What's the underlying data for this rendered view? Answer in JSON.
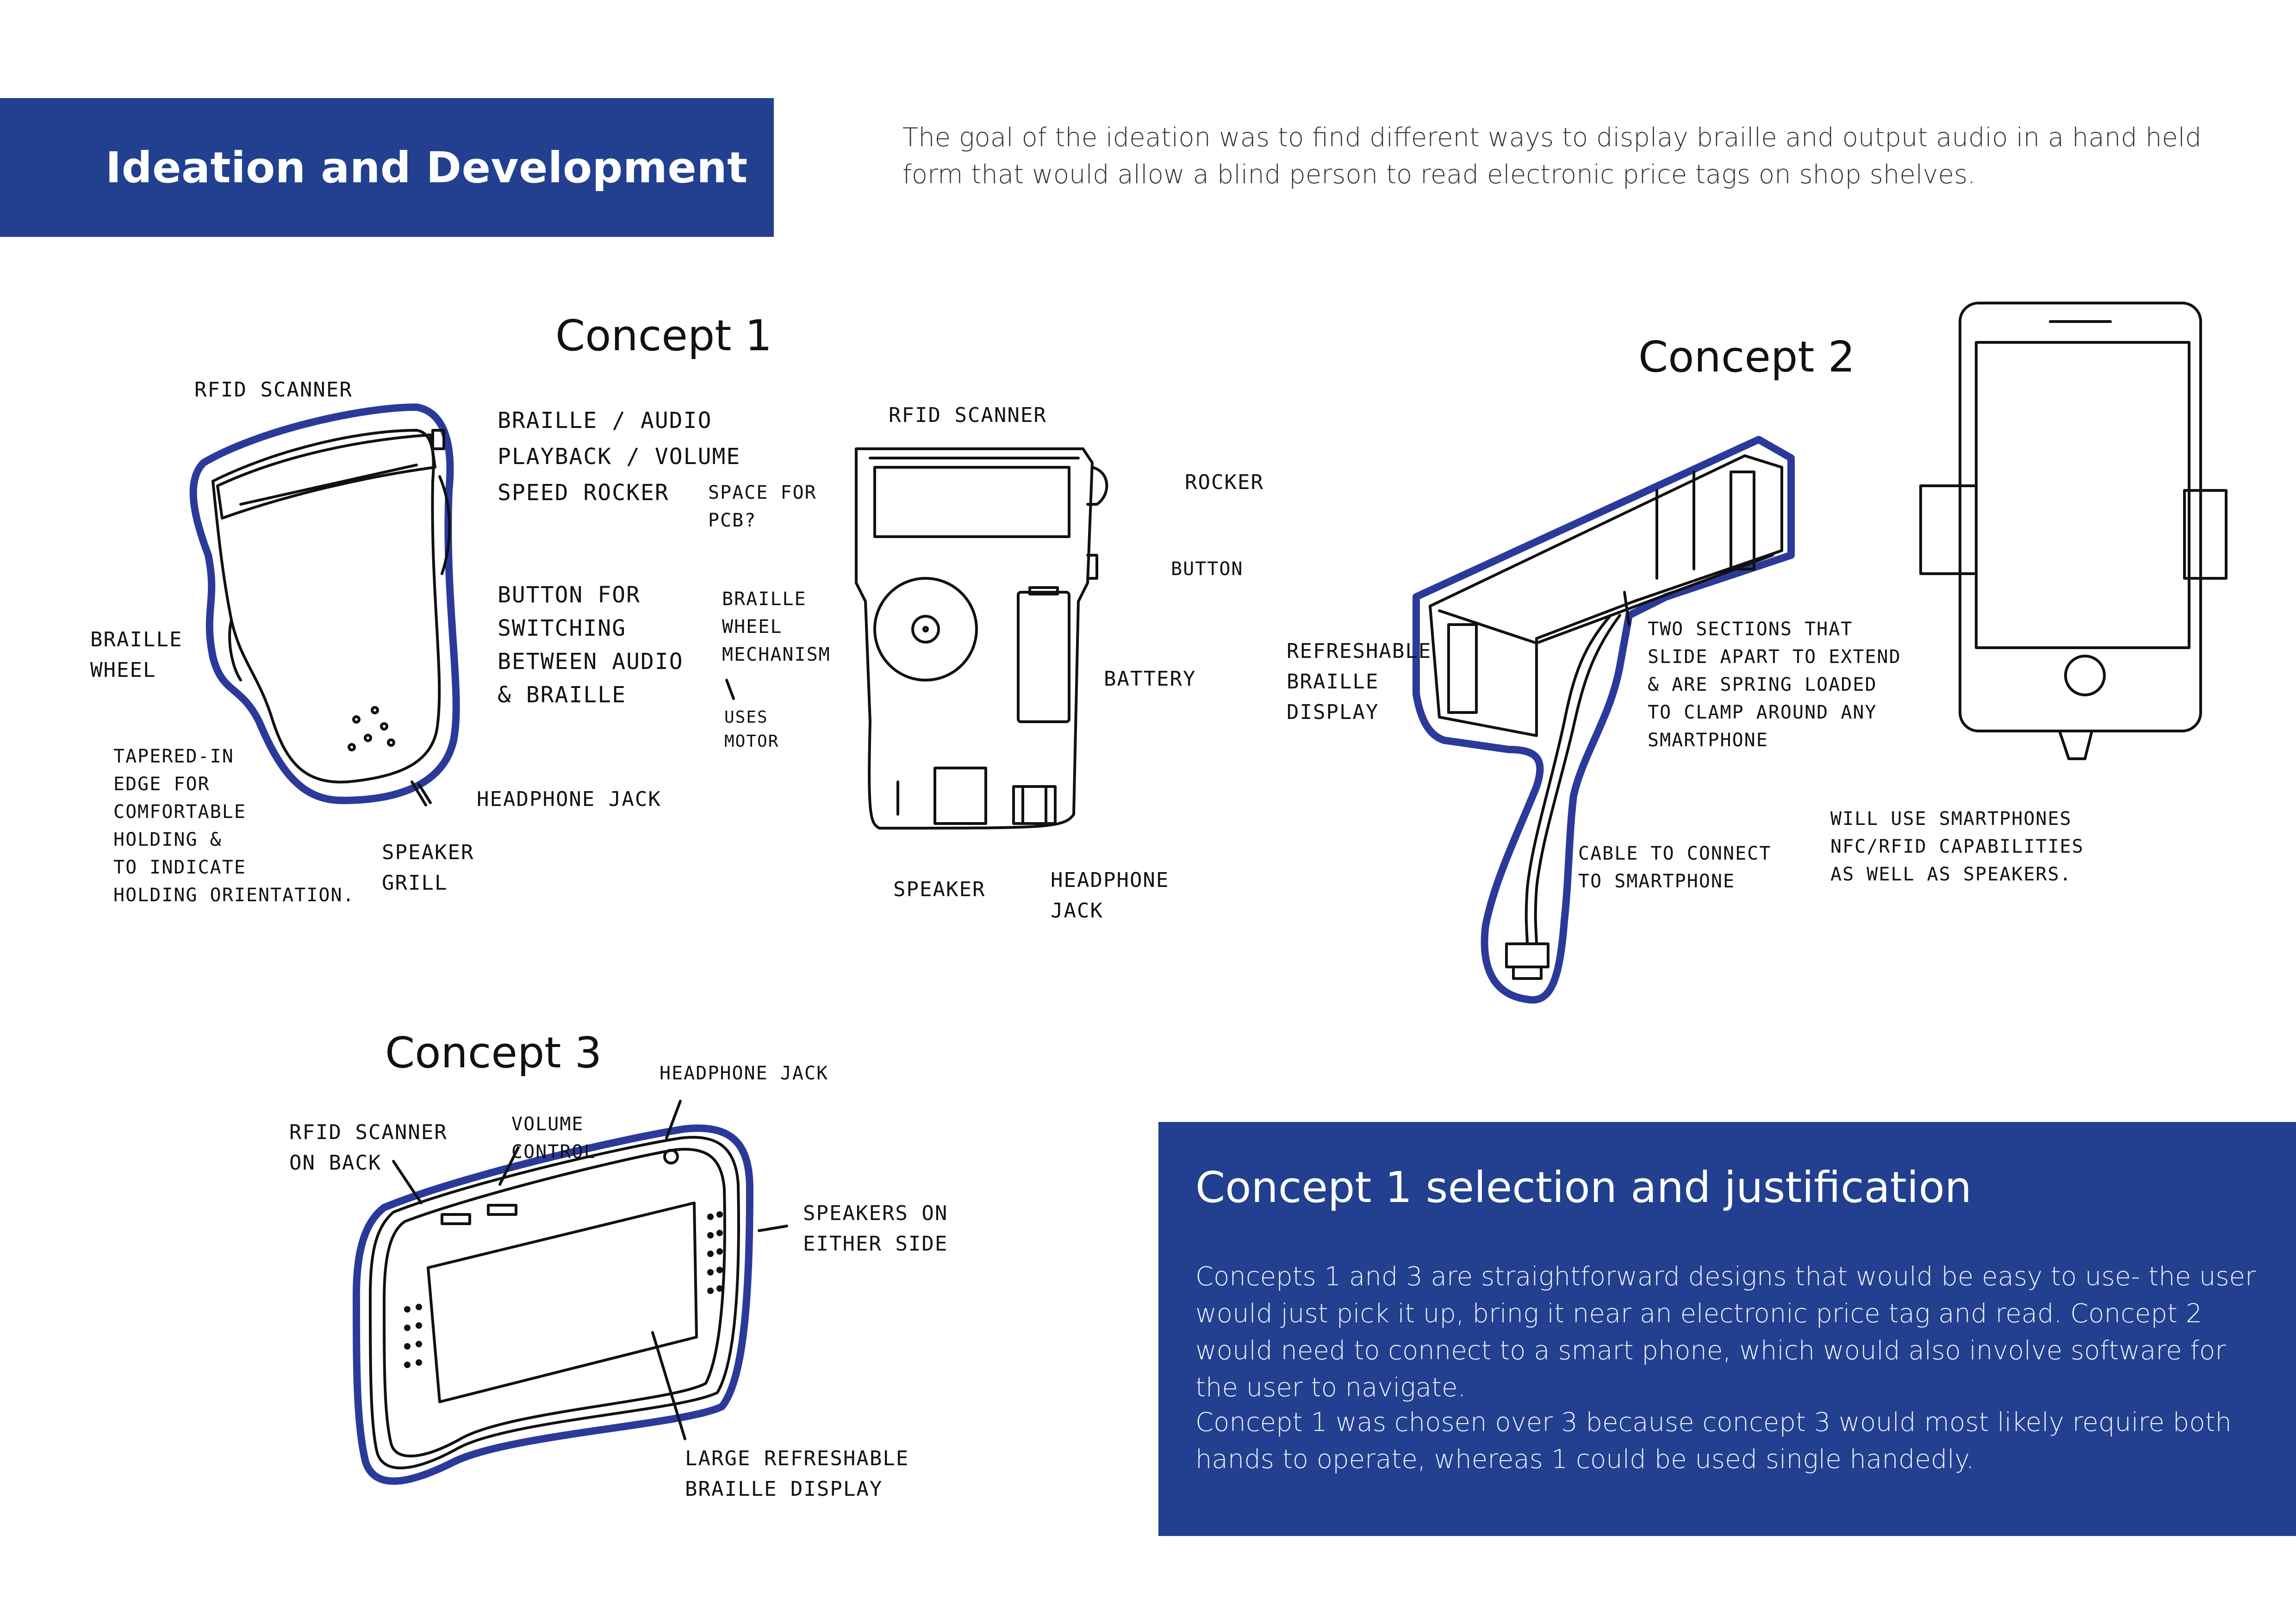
{
  "header": {
    "title": "Ideation and Development",
    "intro": "The goal of the ideation was to find different ways to display braille and output audio in a hand held form that would allow a blind person to read electronic price tags on shop shelves."
  },
  "concept1": {
    "title": "Concept 1",
    "left_sketch": {
      "rfid": "RFID SCANNER",
      "braille_wheel": "BRAILLE\nWHEEL",
      "tapered": "TAPERED-IN\nEDGE FOR\nCOMFORTABLE\nHOLDING &\nTO INDICATE\nHOLDING ORIENTATION.",
      "speaker_grill": "SPEAKER\nGRILL",
      "headphone": "HEADPHONE JACK",
      "rocker": "BRAILLE / AUDIO\nPLAYBACK / VOLUME\nSPEED ROCKER",
      "button": "BUTTON FOR\nSWITCHING\nBETWEEN AUDIO\n& BRAILLE"
    },
    "right_sketch": {
      "pcb": "SPACE FOR\nPCB?",
      "mechanism": "BRAILLE\nWHEEL\nMECHANISM",
      "motor": "USES\nMOTOR",
      "rfid": "RFID SCANNER",
      "rocker": "ROCKER",
      "button": "BUTTON",
      "battery": "BATTERY",
      "speaker": "SPEAKER",
      "headphone": "HEADPHONE\nJACK"
    }
  },
  "concept2": {
    "title": "Concept 2",
    "display": "REFRESHABLE\nBRAILLE\nDISPLAY",
    "sections": "TWO SECTIONS THAT\nSLIDE APART TO EXTEND\n& ARE SPRING LOADED\nTO CLAMP AROUND ANY\nSMARTPHONE",
    "cable": "CABLE TO CONNECT\nTO SMARTPHONE",
    "smartphone": "WILL USE SMARTPHONES\nNFC/RFID CAPABILITIES\nAS WELL AS SPEAKERS."
  },
  "concept3": {
    "title": "Concept 3",
    "rfid": "RFID SCANNER\nON BACK",
    "volume": "VOLUME\nCONTROL",
    "headphone": "HEADPHONE JACK",
    "speakers": "SPEAKERS ON\nEITHER SIDE",
    "display": "LARGE REFRESHABLE\nBRAILLE DISPLAY"
  },
  "selection": {
    "heading": "Concept 1 selection and justification",
    "para1": "Concepts 1 and 3 are straightforward designs that would be easy to use- the user would just pick it up, bring it near an electronic price tag and read. Concept 2 would need to connect to a smart phone, which would also involve software for the user to navigate.",
    "para2": "Concept 1 was chosen over 3 because concept 3 would most likely require both hands to operate, whereas 1 could be used single handedly."
  },
  "colors": {
    "accent": "#22408f",
    "outline": "#2b3a9a"
  }
}
